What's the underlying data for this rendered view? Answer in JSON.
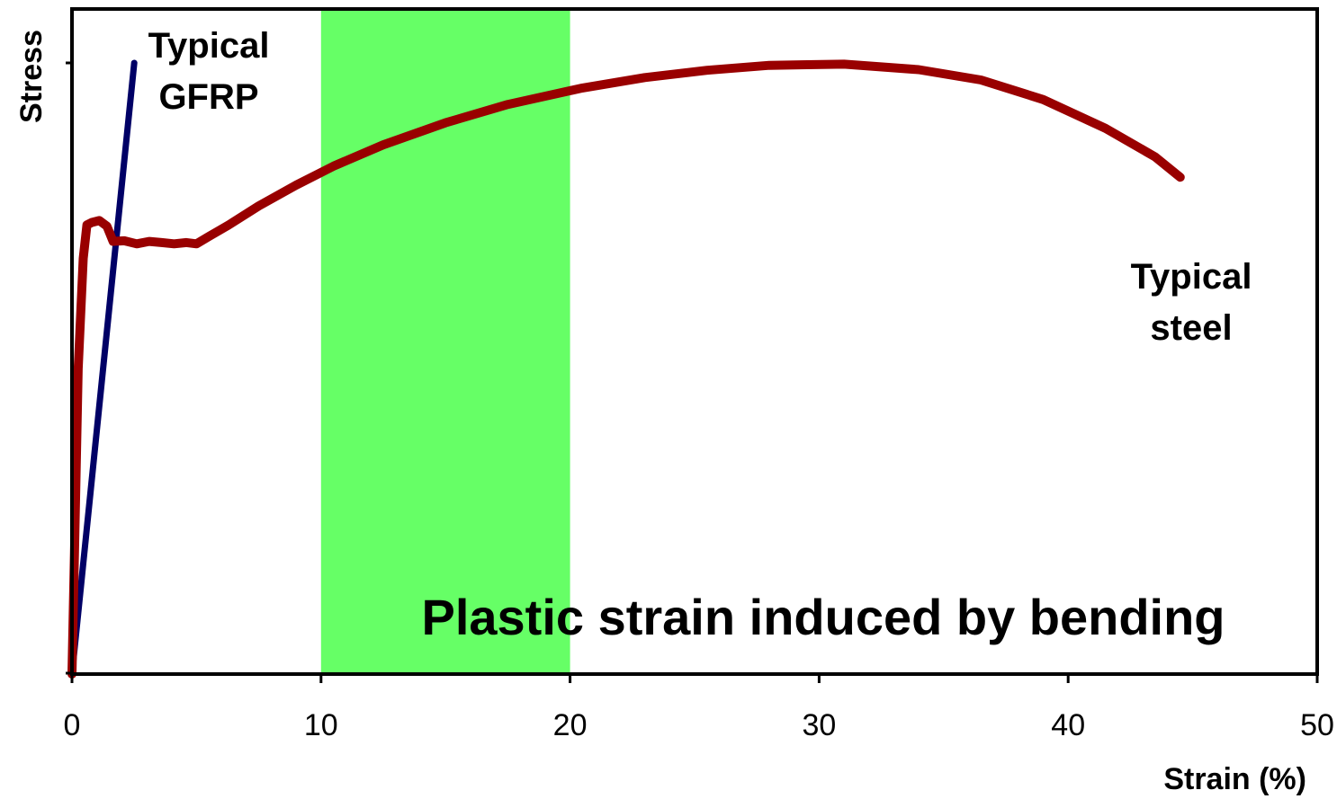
{
  "chart_data": {
    "type": "line",
    "title": "",
    "xlabel": "Strain (%)",
    "ylabel": "Stress",
    "xlim": [
      0,
      50
    ],
    "ylim": [
      0,
      100
    ],
    "x_ticks": [
      "0",
      "10",
      "20",
      "30",
      "40",
      "50"
    ],
    "y_ticks_labeled": false,
    "grid": false,
    "series": [
      {
        "name": "Typical GFRP",
        "color": "#000066",
        "points": [
          [
            0,
            0
          ],
          [
            2.5,
            100
          ]
        ]
      },
      {
        "name": "Typical steel",
        "color": "#990000",
        "points": [
          [
            0,
            0
          ],
          [
            0.1,
            20
          ],
          [
            0.25,
            50
          ],
          [
            0.45,
            68
          ],
          [
            0.6,
            73.5
          ],
          [
            0.8,
            73.9
          ],
          [
            1.1,
            74.2
          ],
          [
            1.4,
            73.3
          ],
          [
            1.65,
            70.8
          ],
          [
            2.1,
            70.9
          ],
          [
            2.6,
            70.4
          ],
          [
            3.1,
            70.8
          ],
          [
            3.6,
            70.6
          ],
          [
            4.1,
            70.4
          ],
          [
            4.6,
            70.6
          ],
          [
            5,
            70.4
          ],
          [
            5.5,
            71.6
          ],
          [
            6.3,
            73.5
          ],
          [
            7.5,
            76.6
          ],
          [
            9,
            80
          ],
          [
            10.5,
            83.1
          ],
          [
            12.5,
            86.6
          ],
          [
            15,
            90.2
          ],
          [
            17.5,
            93.2
          ],
          [
            20.5,
            95.9
          ],
          [
            23,
            97.6
          ],
          [
            25.5,
            98.8
          ],
          [
            28,
            99.6
          ],
          [
            31,
            99.8
          ],
          [
            34,
            98.9
          ],
          [
            36.5,
            97.2
          ],
          [
            39,
            94
          ],
          [
            41.5,
            89.3
          ],
          [
            43.5,
            84.6
          ],
          [
            44.5,
            81.3
          ]
        ]
      }
    ],
    "band": {
      "x_start": 10,
      "x_end": 20,
      "color": "#66ff66",
      "label": "Plastic strain induced by bending"
    },
    "annotations": {
      "gfrp_label": [
        "Typical",
        "GFRP"
      ],
      "steel_label": [
        "Typical",
        "steel"
      ]
    }
  }
}
